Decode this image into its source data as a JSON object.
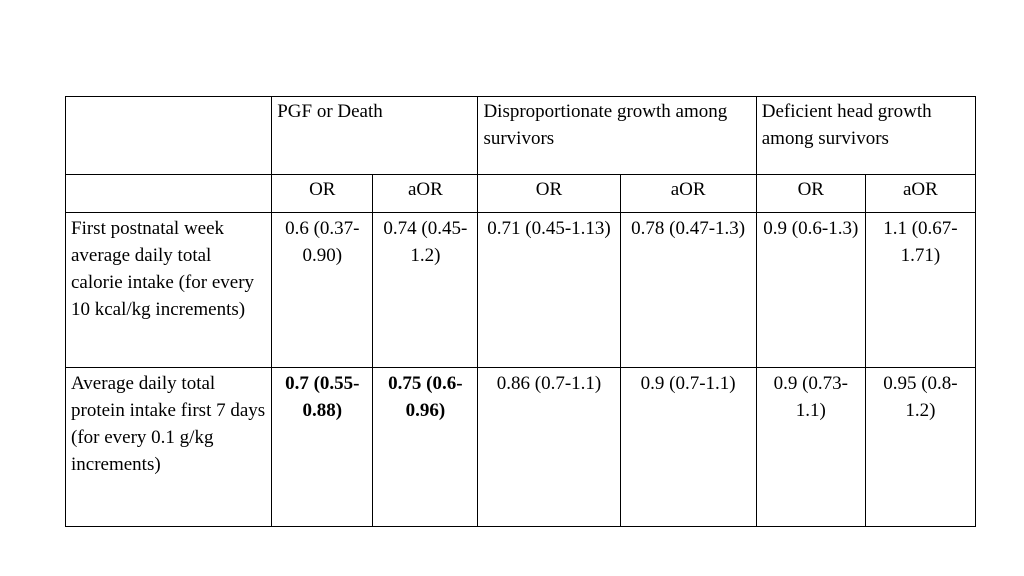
{
  "table": {
    "group_headers": [
      "PGF or Death",
      "Disproportionate growth among survivors",
      "Deficient head growth among survivors"
    ],
    "sub_headers": [
      "OR",
      "aOR",
      "OR",
      "aOR",
      "OR",
      "aOR"
    ],
    "rows": [
      {
        "label": "First postnatal week average daily total calorie intake (for every 10 kcal/kg increments)",
        "values": [
          "0.6 (0.37-0.90)",
          "0.74 (0.45-1.2)",
          "0.71 (0.45-1.13)",
          "0.78 (0.47-1.3)",
          "0.9 (0.6-1.3)",
          "1.1 (0.67-1.71)"
        ],
        "bold": [
          false,
          false,
          false,
          false,
          false,
          false
        ]
      },
      {
        "label": "Average daily total protein intake first 7 days (for every 0.1 g/kg increments)",
        "values": [
          "0.7 (0.55-0.88)",
          "0.75 (0.6-0.96)",
          "0.86 (0.7-1.1)",
          "0.9 (0.7-1.1)",
          "0.9 (0.73-1.1)",
          "0.95 (0.8-1.2)"
        ],
        "bold": [
          true,
          true,
          false,
          false,
          false,
          false
        ]
      }
    ]
  }
}
